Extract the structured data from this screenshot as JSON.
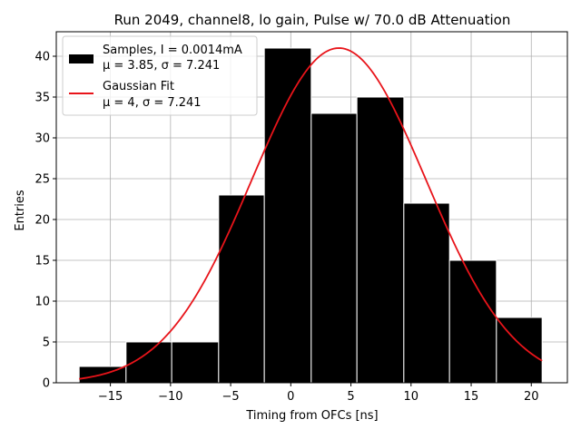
{
  "chart_data": {
    "type": "bar",
    "title": "Run 2049, channel8, lo gain, Pulse w/ 70.0 dB Attenuation",
    "xlabel": "Timing from OFCs [ns]",
    "ylabel": "Entries",
    "xlim": [
      -19.5,
      23.0
    ],
    "ylim": [
      0,
      43
    ],
    "grid": true,
    "legend_position": "top-left",
    "x_ticks": [
      -15,
      -10,
      -5,
      0,
      5,
      10,
      15,
      20
    ],
    "x_tick_labels": [
      "−15",
      "−10",
      "−5",
      "0",
      "5",
      "10",
      "15",
      "20"
    ],
    "y_ticks": [
      0,
      5,
      10,
      15,
      20,
      25,
      30,
      35,
      40
    ],
    "y_tick_labels": [
      "0",
      "5",
      "10",
      "15",
      "20",
      "25",
      "30",
      "35",
      "40"
    ],
    "bin_edges": [
      -17.6,
      -13.7,
      -9.9,
      -6.0,
      -2.2,
      1.7,
      5.5,
      9.4,
      13.2,
      17.1,
      20.9
    ],
    "counts": [
      2,
      5,
      5,
      23,
      41,
      33,
      35,
      22,
      15,
      8
    ],
    "series": [
      {
        "name": "Samples",
        "kind": "histogram",
        "color": "#000000",
        "legend_line1": "Samples, I = 0.0014mA",
        "legend_line2": "μ = 3.85, σ = 7.241"
      },
      {
        "name": "Gaussian Fit",
        "kind": "line",
        "color": "#e8141a",
        "amplitude": 41,
        "mu": 4,
        "sigma": 7.241,
        "x_range": [
          -17.6,
          20.9
        ],
        "legend_line1": "Gaussian Fit",
        "legend_line2": "μ = 4, σ = 7.241"
      }
    ]
  }
}
